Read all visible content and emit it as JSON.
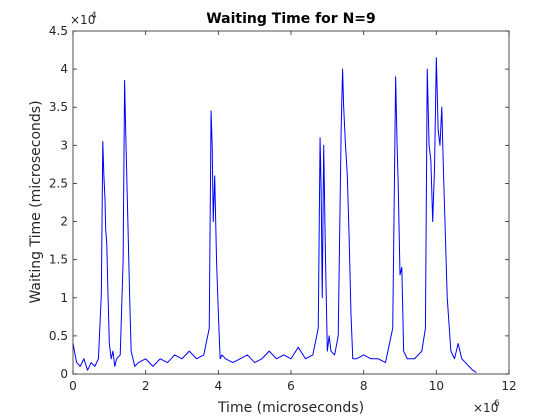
{
  "chart_data": {
    "type": "line",
    "title": "Waiting Time for N=9",
    "xlabel": "Time (microseconds)",
    "ylabel": "Waiting Time (microseconds)",
    "x_multiplier": {
      "base": "×10",
      "exponent": "6"
    },
    "y_multiplier": {
      "base": "×10",
      "exponent": "4"
    },
    "xlim": [
      0,
      12
    ],
    "ylim": [
      0,
      4.5
    ],
    "x_ticks": [
      0,
      2,
      4,
      6,
      8,
      10,
      12
    ],
    "x_tick_labels": [
      "0",
      "2",
      "4",
      "6",
      "8",
      "10",
      "12"
    ],
    "y_ticks": [
      0,
      0.5,
      1,
      1.5,
      2,
      2.5,
      3,
      3.5,
      4,
      4.5
    ],
    "y_tick_labels": [
      "0",
      "0.5",
      "1",
      "1.5",
      "2",
      "2.5",
      "3",
      "3.5",
      "4",
      "4.5"
    ],
    "grid": false,
    "series_color": "#0000ff",
    "series": [
      {
        "x": [
          0.0,
          0.1,
          0.2,
          0.3,
          0.4,
          0.5,
          0.6,
          0.7,
          0.78,
          0.82,
          0.85,
          0.88,
          0.9,
          0.93,
          0.96,
          1.0,
          1.05,
          1.1,
          1.15,
          1.2,
          1.3,
          1.38,
          1.42,
          1.45,
          1.48,
          1.52,
          1.56,
          1.6,
          1.65,
          1.7,
          1.8,
          2.0,
          2.2,
          2.4,
          2.6,
          2.8,
          3.0,
          3.2,
          3.4,
          3.6,
          3.75,
          3.8,
          3.83,
          3.86,
          3.9,
          3.95,
          4.0,
          4.05,
          4.1,
          4.2,
          4.4,
          4.6,
          4.8,
          5.0,
          5.2,
          5.4,
          5.6,
          5.8,
          6.0,
          6.2,
          6.4,
          6.6,
          6.75,
          6.8,
          6.83,
          6.86,
          6.9,
          6.95,
          7.0,
          7.05,
          7.1,
          7.2,
          7.3,
          7.38,
          7.42,
          7.45,
          7.5,
          7.55,
          7.6,
          7.65,
          7.7,
          7.8,
          8.0,
          8.2,
          8.4,
          8.6,
          8.8,
          8.88,
          8.92,
          8.95,
          9.0,
          9.05,
          9.1,
          9.2,
          9.4,
          9.6,
          9.7,
          9.75,
          9.8,
          9.85,
          9.9,
          9.95,
          10.0,
          10.05,
          10.1,
          10.15,
          10.2,
          10.3,
          10.4,
          10.5,
          10.6,
          10.7,
          10.8,
          10.9,
          11.0,
          11.1
        ],
        "y": [
          0.4,
          0.15,
          0.1,
          0.2,
          0.05,
          0.15,
          0.1,
          0.2,
          1.05,
          3.05,
          2.6,
          2.3,
          1.9,
          1.7,
          1.1,
          0.4,
          0.2,
          0.3,
          0.1,
          0.2,
          0.25,
          1.5,
          3.85,
          3.2,
          2.6,
          1.8,
          1.0,
          0.3,
          0.2,
          0.1,
          0.15,
          0.2,
          0.1,
          0.2,
          0.15,
          0.25,
          0.2,
          0.3,
          0.2,
          0.25,
          0.6,
          3.45,
          3.0,
          2.0,
          2.6,
          1.5,
          0.8,
          0.2,
          0.25,
          0.2,
          0.15,
          0.2,
          0.25,
          0.15,
          0.2,
          0.3,
          0.2,
          0.25,
          0.2,
          0.35,
          0.2,
          0.25,
          0.6,
          3.1,
          2.4,
          1.0,
          3.0,
          1.5,
          0.3,
          0.5,
          0.3,
          0.25,
          0.5,
          3.2,
          4.0,
          3.5,
          3.0,
          2.6,
          1.8,
          0.8,
          0.2,
          0.2,
          0.25,
          0.2,
          0.2,
          0.15,
          0.6,
          3.9,
          3.0,
          2.5,
          1.3,
          1.4,
          0.3,
          0.2,
          0.2,
          0.3,
          0.6,
          4.0,
          3.0,
          2.8,
          2.0,
          2.7,
          4.15,
          3.2,
          3.0,
          3.5,
          2.6,
          1.0,
          0.3,
          0.2,
          0.4,
          0.2,
          0.15,
          0.1,
          0.05,
          0.02
        ]
      }
    ]
  }
}
